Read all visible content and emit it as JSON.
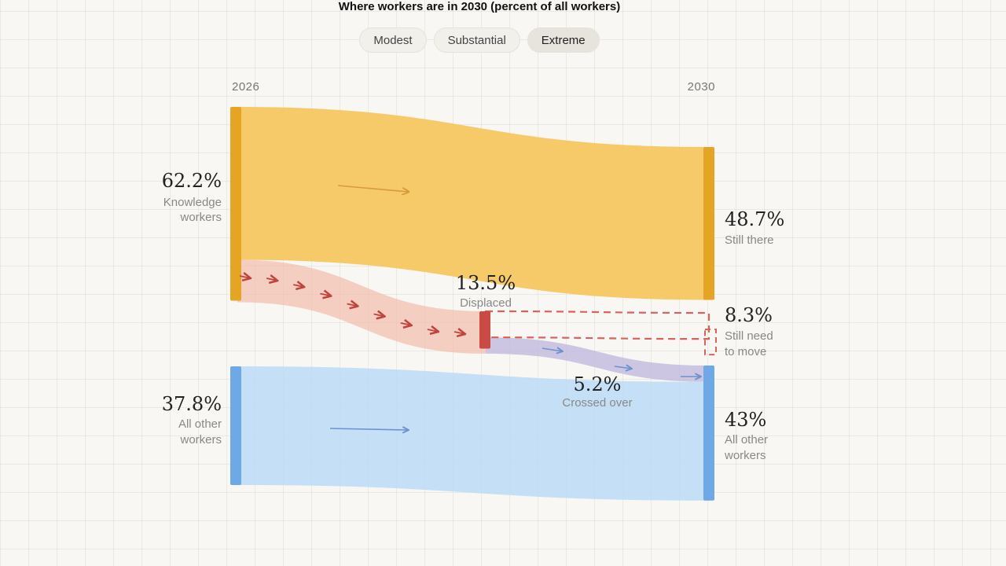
{
  "title": "Where workers are in 2030 (percent of all workers)",
  "tabs": [
    {
      "label": "Modest",
      "active": false
    },
    {
      "label": "Substantial",
      "active": false
    },
    {
      "label": "Extreme",
      "active": true
    }
  ],
  "colors": {
    "knowledge": "#f5c65c",
    "knowledge_bar": "#e5a423",
    "displaced": "#f3b8a8",
    "displaced_bar": "#cc4a44",
    "still_need": "#d9625a",
    "crossed": "#c2b9de",
    "other": "#bcdcf6",
    "other_bar": "#6fa8e6"
  },
  "chart_data": {
    "type": "sankey",
    "title": "Where workers are in 2030 (percent of all workers)",
    "scenario": "Extreme",
    "x_labels": {
      "start": "2026",
      "end": "2030"
    },
    "sources": [
      {
        "id": "knowledge",
        "value": 62.2,
        "value_label": "62.2%",
        "label": "Knowledge workers",
        "label_lines": [
          "Knowledge",
          "workers"
        ]
      },
      {
        "id": "other",
        "value": 37.8,
        "value_label": "37.8%",
        "label": "All other workers",
        "label_lines": [
          "All other",
          "workers"
        ]
      }
    ],
    "intermediate": {
      "id": "displaced",
      "value": 13.5,
      "value_label": "13.5%",
      "label": "Displaced"
    },
    "crossed": {
      "value": 5.2,
      "value_label": "5.2%",
      "label": "Crossed over"
    },
    "targets": [
      {
        "id": "still_there",
        "value": 48.7,
        "value_label": "48.7%",
        "label": "Still there",
        "label_lines": [
          "Still there"
        ]
      },
      {
        "id": "still_need",
        "value": 8.3,
        "value_label": "8.3%",
        "label": "Still need to move",
        "label_lines": [
          "Still need",
          "to move"
        ]
      },
      {
        "id": "other_2030",
        "value": 43,
        "value_label": "43%",
        "label": "All other workers",
        "label_lines": [
          "All other",
          "workers"
        ]
      }
    ],
    "flows": [
      {
        "from": "knowledge",
        "to": "still_there",
        "value": 48.7
      },
      {
        "from": "knowledge",
        "to": "displaced",
        "value": 13.5
      },
      {
        "from": "displaced",
        "to": "still_need",
        "value": 8.3
      },
      {
        "from": "displaced",
        "to": "other_2030",
        "value": 5.2
      },
      {
        "from": "other",
        "to": "other_2030",
        "value": 37.8
      }
    ]
  }
}
